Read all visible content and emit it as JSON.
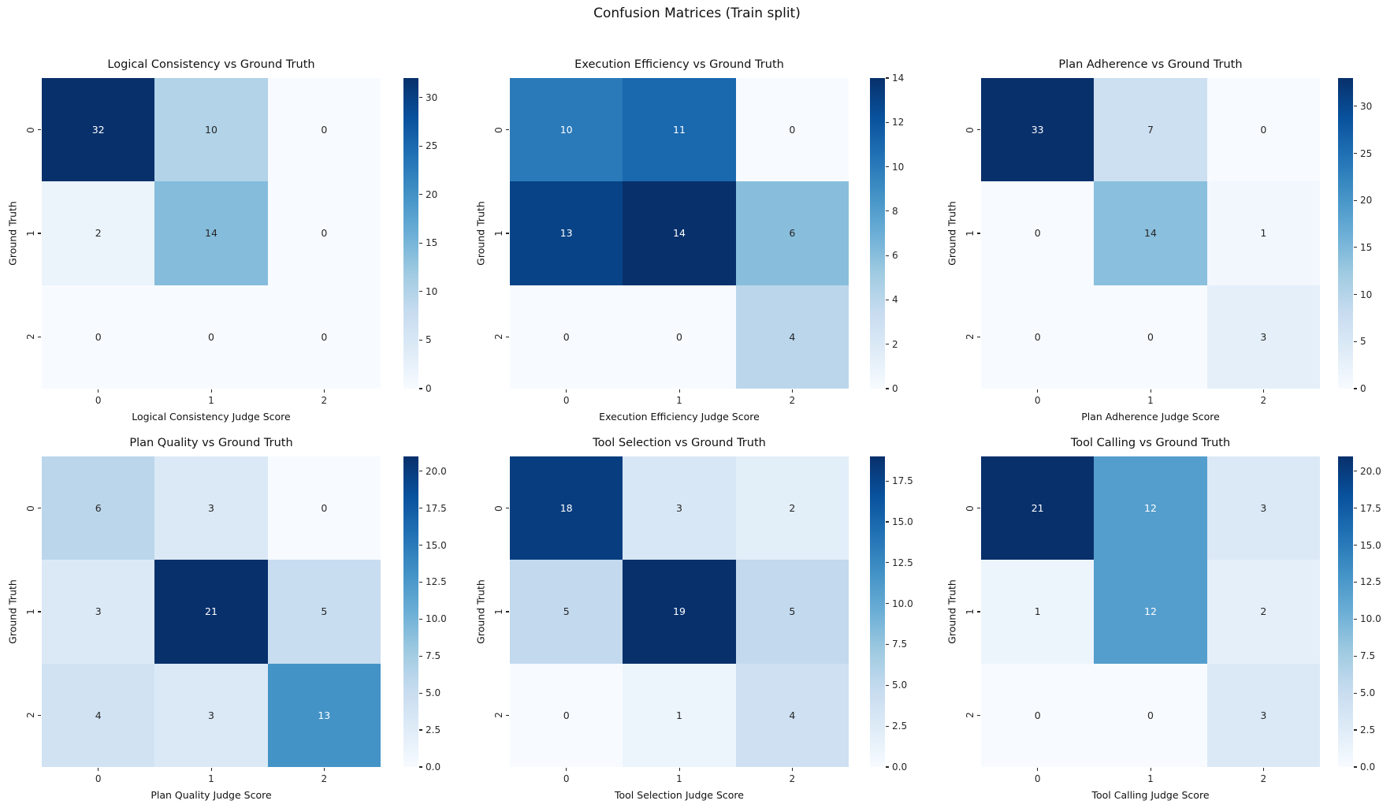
{
  "figure": {
    "suptitle": "Confusion Matrices (Train split)",
    "background": "#ffffff",
    "colormap_name": "Blues",
    "colormap_stops": [
      "#f7fbff",
      "#deebf7",
      "#c6dbef",
      "#9ecae1",
      "#6baed6",
      "#4292c6",
      "#2171b5",
      "#08519c",
      "#08306b"
    ],
    "annot_dark": "#262626",
    "annot_light": "#ffffff"
  },
  "chart_data": [
    {
      "type": "heatmap",
      "title": "Logical Consistency vs Ground Truth",
      "xlabel": "Logical Consistency Judge Score",
      "ylabel": "Ground Truth",
      "x_ticks": [
        "0",
        "1",
        "2"
      ],
      "y_ticks": [
        "0",
        "1",
        "2"
      ],
      "matrix": [
        [
          32,
          10,
          0
        ],
        [
          2,
          14,
          0
        ],
        [
          0,
          0,
          0
        ]
      ],
      "vmin": 0,
      "vmax": 32,
      "colorbar_ticks": [
        "0",
        "5",
        "10",
        "15",
        "20",
        "25",
        "30"
      ]
    },
    {
      "type": "heatmap",
      "title": "Execution Efficiency vs Ground Truth",
      "xlabel": "Execution Efficiency Judge Score",
      "ylabel": "Ground Truth",
      "x_ticks": [
        "0",
        "1",
        "2"
      ],
      "y_ticks": [
        "0",
        "1",
        "2"
      ],
      "matrix": [
        [
          10,
          11,
          0
        ],
        [
          13,
          14,
          6
        ],
        [
          0,
          0,
          4
        ]
      ],
      "vmin": 0,
      "vmax": 14,
      "colorbar_ticks": [
        "0",
        "2",
        "4",
        "6",
        "8",
        "10",
        "12",
        "14"
      ]
    },
    {
      "type": "heatmap",
      "title": "Plan Adherence vs Ground Truth",
      "xlabel": "Plan Adherence Judge Score",
      "ylabel": "Ground Truth",
      "x_ticks": [
        "0",
        "1",
        "2"
      ],
      "y_ticks": [
        "0",
        "1",
        "2"
      ],
      "matrix": [
        [
          33,
          7,
          0
        ],
        [
          0,
          14,
          1
        ],
        [
          0,
          0,
          3
        ]
      ],
      "vmin": 0,
      "vmax": 33,
      "colorbar_ticks": [
        "0",
        "5",
        "10",
        "15",
        "20",
        "25",
        "30"
      ]
    },
    {
      "type": "heatmap",
      "title": "Plan Quality vs Ground Truth",
      "xlabel": "Plan Quality Judge Score",
      "ylabel": "Ground Truth",
      "x_ticks": [
        "0",
        "1",
        "2"
      ],
      "y_ticks": [
        "0",
        "1",
        "2"
      ],
      "matrix": [
        [
          6,
          3,
          0
        ],
        [
          3,
          21,
          5
        ],
        [
          4,
          3,
          13
        ]
      ],
      "vmin": 0,
      "vmax": 21,
      "colorbar_ticks": [
        "0.0",
        "2.5",
        "5.0",
        "7.5",
        "10.0",
        "12.5",
        "15.0",
        "17.5",
        "20.0"
      ]
    },
    {
      "type": "heatmap",
      "title": "Tool Selection vs Ground Truth",
      "xlabel": "Tool Selection Judge Score",
      "ylabel": "Ground Truth",
      "x_ticks": [
        "0",
        "1",
        "2"
      ],
      "y_ticks": [
        "0",
        "1",
        "2"
      ],
      "matrix": [
        [
          18,
          3,
          2
        ],
        [
          5,
          19,
          5
        ],
        [
          0,
          1,
          4
        ]
      ],
      "vmin": 0,
      "vmax": 19,
      "colorbar_ticks": [
        "0.0",
        "2.5",
        "5.0",
        "7.5",
        "10.0",
        "12.5",
        "15.0",
        "17.5"
      ]
    },
    {
      "type": "heatmap",
      "title": "Tool Calling vs Ground Truth",
      "xlabel": "Tool Calling Judge Score",
      "ylabel": "Ground Truth",
      "x_ticks": [
        "0",
        "1",
        "2"
      ],
      "y_ticks": [
        "0",
        "1",
        "2"
      ],
      "matrix": [
        [
          21,
          12,
          3
        ],
        [
          1,
          12,
          2
        ],
        [
          0,
          0,
          3
        ]
      ],
      "vmin": 0,
      "vmax": 21,
      "colorbar_ticks": [
        "0.0",
        "2.5",
        "5.0",
        "7.5",
        "10.0",
        "12.5",
        "15.0",
        "17.5",
        "20.0"
      ]
    }
  ]
}
